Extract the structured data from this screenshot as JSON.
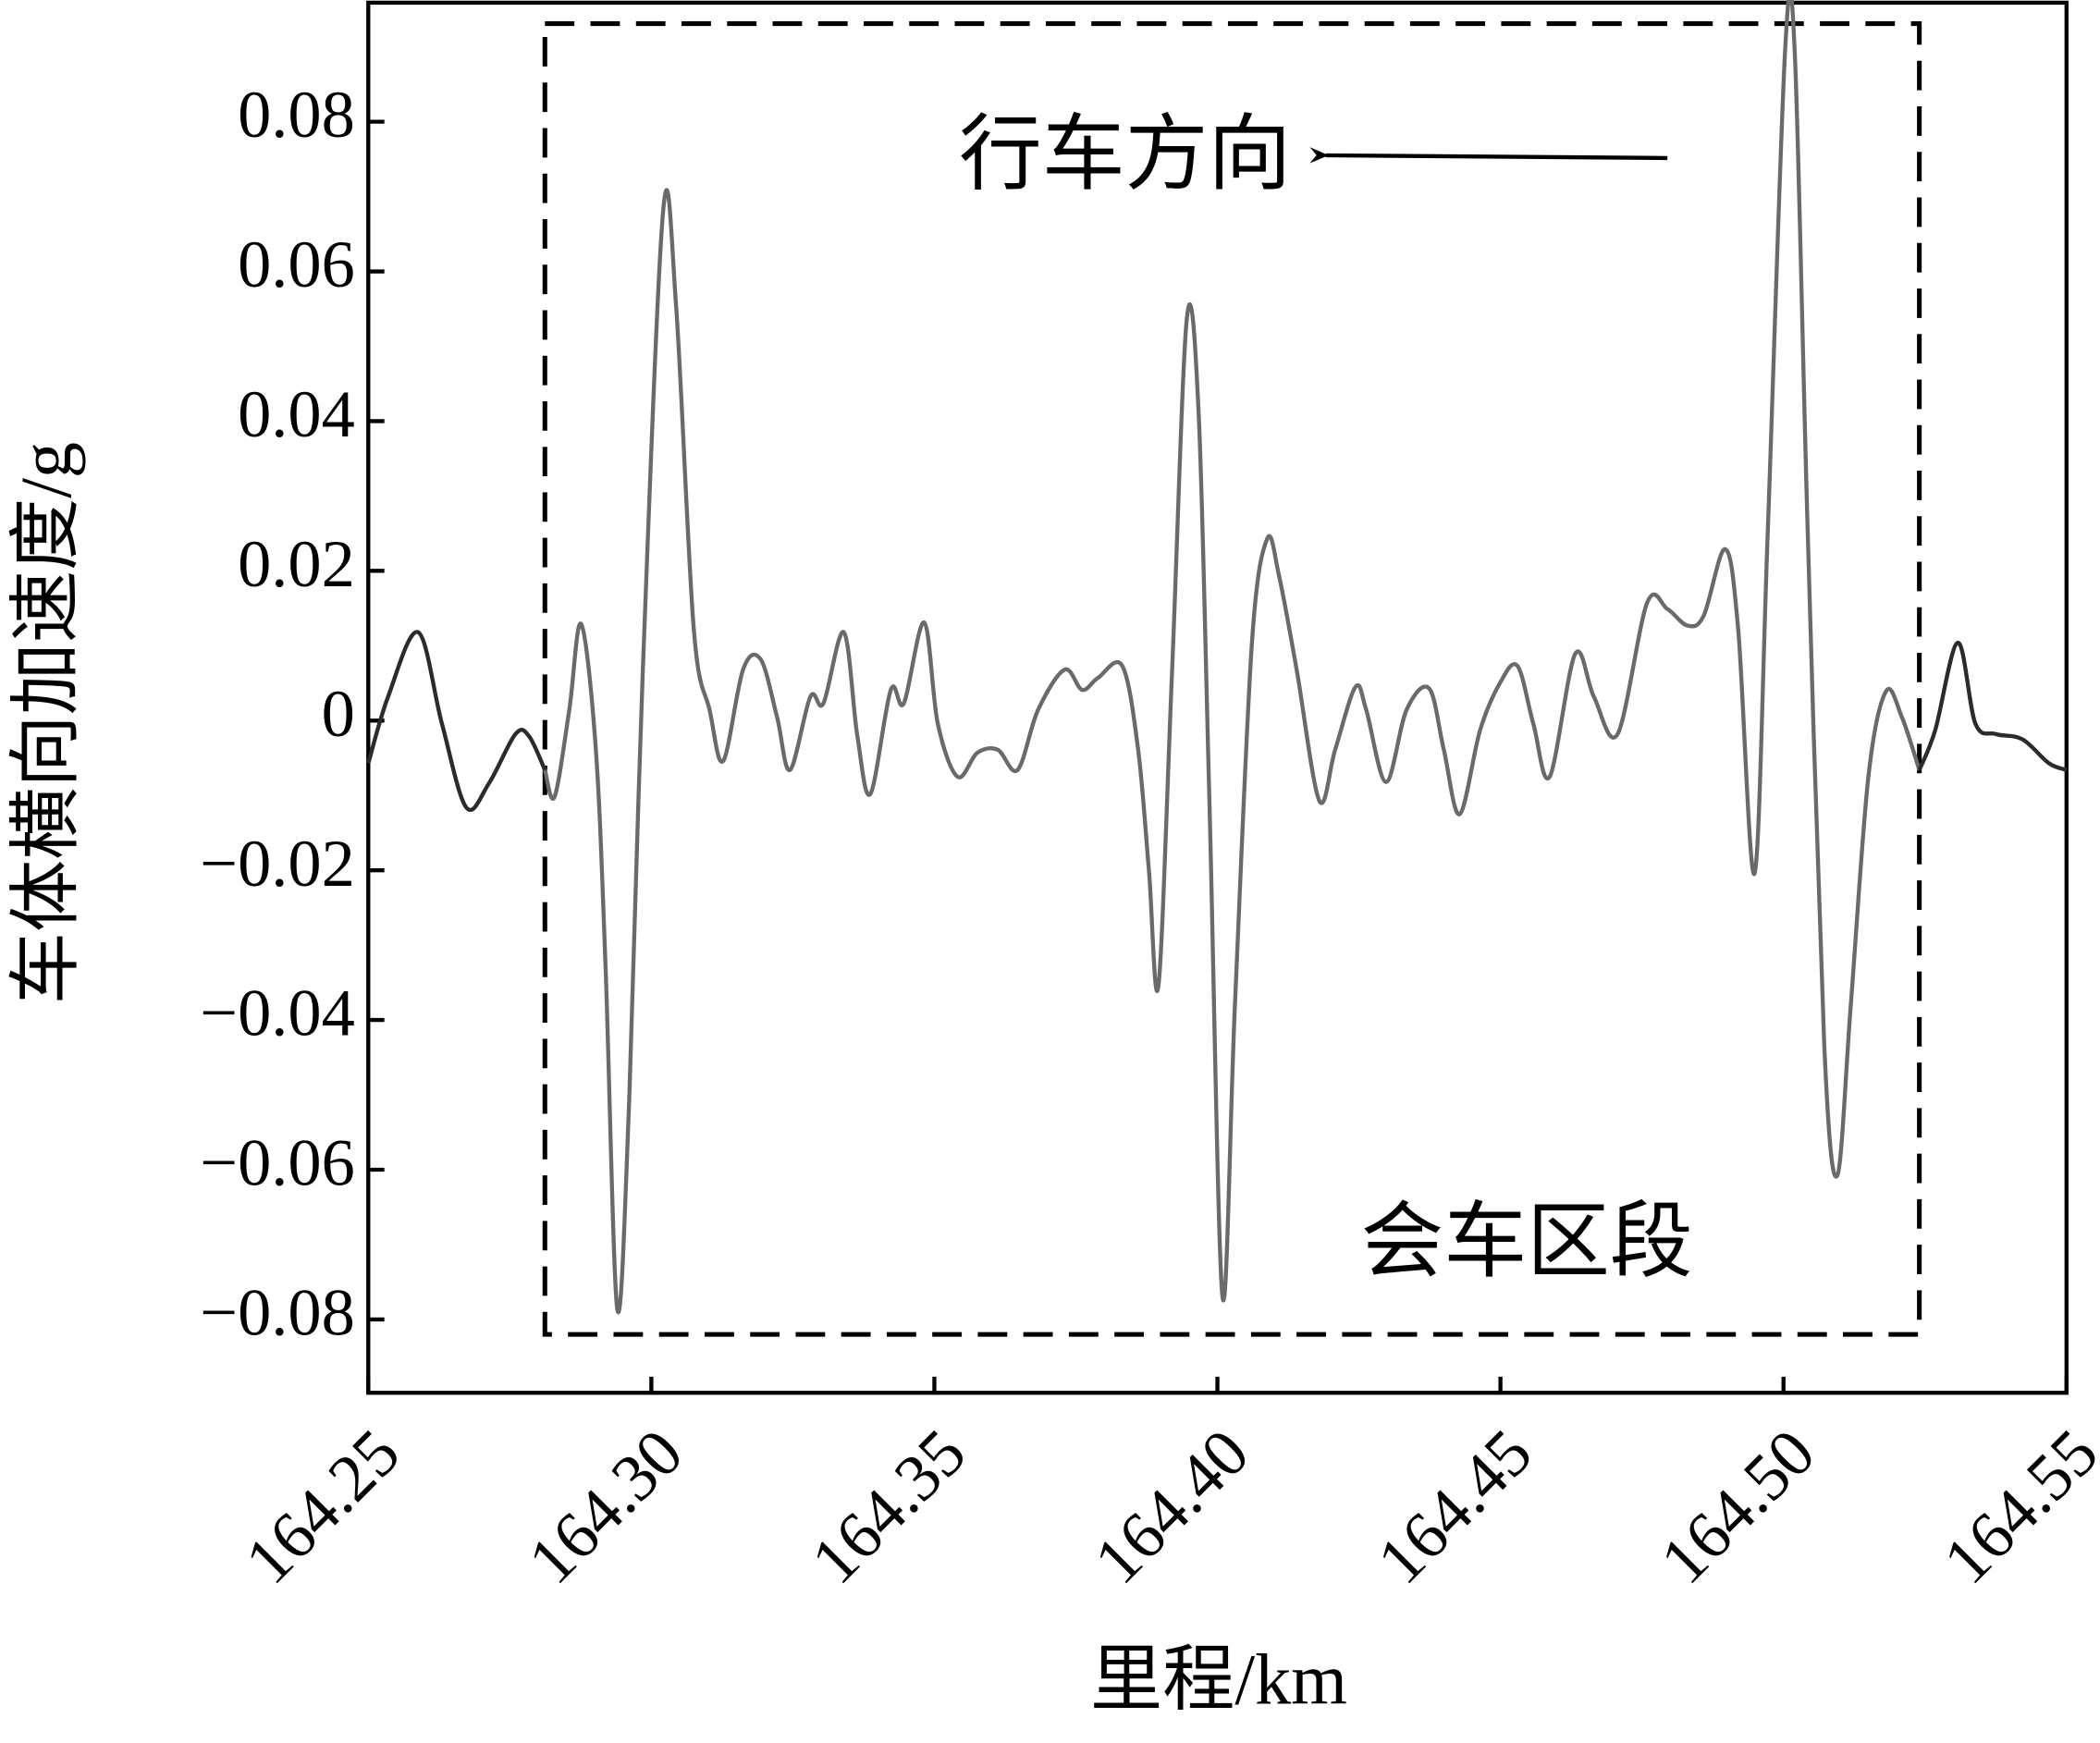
{
  "chart_data": {
    "type": "line",
    "xlabel": "里程/km",
    "ylabel": "车体横向加速度/g",
    "xlim": [
      164.25,
      164.55
    ],
    "ylim": [
      -0.0898,
      0.0959
    ],
    "xticks": [
      {
        "value": 164.25,
        "label": "164.25"
      },
      {
        "value": 164.3,
        "label": "164.30"
      },
      {
        "value": 164.35,
        "label": "164.35"
      },
      {
        "value": 164.4,
        "label": "164.40"
      },
      {
        "value": 164.45,
        "label": "164.45"
      },
      {
        "value": 164.5,
        "label": "164.50"
      },
      {
        "value": 164.55,
        "label": "164.55"
      }
    ],
    "yticks": [
      {
        "value": -0.08,
        "label": "−0.08"
      },
      {
        "value": -0.06,
        "label": "−0.06"
      },
      {
        "value": -0.04,
        "label": "−0.04"
      },
      {
        "value": -0.02,
        "label": "−0.02"
      },
      0,
      0.02,
      0.04,
      0.06,
      0.08
    ],
    "series": [
      {
        "color": "#2b2b2b",
        "x": [
          164.25,
          164.2535,
          164.2588,
          164.263,
          164.2673,
          164.2713,
          164.276,
          164.2784,
          164.2812
        ],
        "values": [
          -0.0057,
          0.0032,
          0.0118,
          -0.0004,
          -0.0116,
          -0.0084,
          -0.0018,
          -0.0021,
          -0.0066
        ]
      },
      {
        "color": "#6a6a6a",
        "x": [
          164.2812,
          164.2829,
          164.2855,
          164.2876,
          164.2902,
          164.2919,
          164.294,
          164.2961,
          164.2985,
          164.3021,
          164.3044,
          164.3075,
          164.3103,
          164.3127,
          164.3162,
          164.3193,
          164.3222,
          164.3245,
          164.3281,
          164.3304,
          164.334,
          164.3364,
          164.3387,
          164.3423,
          164.3446,
          164.3482,
          164.3506,
          164.3541,
          164.3576,
          164.3612,
          164.3647,
          164.3683,
          164.373,
          164.3761,
          164.3789,
          164.3832,
          164.386,
          164.3879,
          164.3896,
          164.392,
          164.3946,
          164.3967,
          164.3986,
          164.4009,
          164.4031,
          164.4061,
          164.4088,
          164.4109,
          164.414,
          164.418,
          164.4208,
          164.4244,
          164.4263,
          164.4298,
          164.4334,
          164.4374,
          164.44,
          164.4428,
          164.4464,
          164.4499,
          164.453,
          164.4558,
          164.4587,
          164.4632,
          164.4665,
          164.4707,
          164.4759,
          164.4795,
          164.483,
          164.4859,
          164.4897,
          164.492,
          164.4949,
          164.4972,
          164.5003,
          164.502,
          164.5043,
          164.5072,
          164.5095,
          164.5119,
          164.515,
          164.5181,
          164.5209,
          164.524
        ],
        "values": [
          -0.0066,
          -0.0102,
          0.0014,
          0.0129,
          -0.0039,
          -0.0326,
          -0.0787,
          -0.0505,
          0.0068,
          0.0682,
          0.0551,
          0.0122,
          0.0014,
          -0.0054,
          0.0068,
          0.0082,
          0.0005,
          -0.0066,
          0.0032,
          0.0023,
          0.0118,
          -0.0021,
          -0.0098,
          0.0041,
          0.0023,
          0.0131,
          -0.0004,
          -0.0075,
          -0.0043,
          -0.0039,
          -0.0066,
          0.0014,
          0.0068,
          0.0041,
          0.0057,
          0.0073,
          -0.0039,
          -0.02,
          -0.0353,
          0.0068,
          0.0537,
          0.0408,
          -0.0111,
          -0.077,
          -0.0379,
          0.0104,
          0.0243,
          0.0193,
          0.0068,
          -0.0107,
          -0.0039,
          0.0045,
          0.0014,
          -0.0082,
          0.0014,
          0.0043,
          -0.0039,
          -0.0125,
          -0.0013,
          0.005,
          0.0073,
          -0.0004,
          -0.0075,
          0.0089,
          0.0032,
          -0.0018,
          0.0157,
          0.0149,
          0.0127,
          0.014,
          0.0229,
          0.0122,
          -0.0204,
          0.0247,
          0.0897,
          0.0891,
          0.0247,
          -0.0433,
          -0.0608,
          -0.0379,
          -0.0075,
          0.0039,
          0.0005,
          -0.0066
        ]
      },
      {
        "color": "#2b2b2b",
        "x": [
          164.524,
          164.5268,
          164.5308,
          164.5339,
          164.5375,
          164.5422,
          164.5469,
          164.55
        ],
        "values": [
          -0.0066,
          -0.0013,
          0.0104,
          -0.0004,
          -0.0018,
          -0.0025,
          -0.0057,
          -0.0066
        ]
      }
    ],
    "highlight_region": {
      "xlim": [
        164.2812,
        164.524
      ],
      "ylim": [
        -0.082,
        0.0931
      ]
    },
    "annotations": [
      {
        "text": "行车方向"
      },
      {
        "text": "会车区段"
      }
    ]
  }
}
